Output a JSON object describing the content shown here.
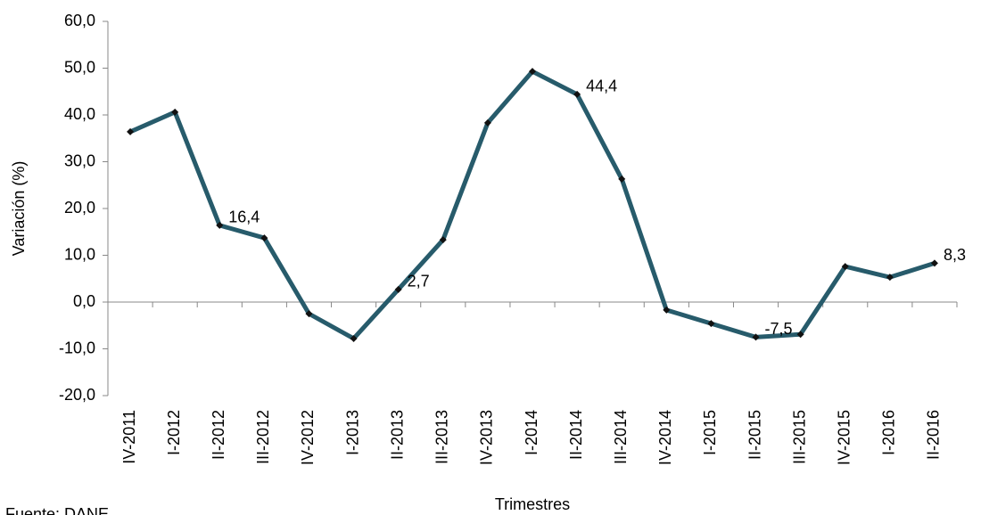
{
  "chart_data": {
    "type": "line",
    "x_label": "Trimestres",
    "y_label": "Variación (%)",
    "source": "Fuente: DANE",
    "categories": [
      "IV-2011",
      "I-2012",
      "II-2012",
      "III-2012",
      "IV-2012",
      "I-2013",
      "II-2013",
      "III-2013",
      "IV-2013",
      "I-2014",
      "II-2014",
      "III-2014",
      "IV-2014",
      "I-2015",
      "II-2015",
      "III-2015",
      "IV-2015",
      "I-2016",
      "II-2016"
    ],
    "series": [
      {
        "name": "Variación",
        "color": "#275b6b",
        "values": [
          36.4,
          40.6,
          16.4,
          13.7,
          -2.5,
          -7.8,
          2.7,
          13.3,
          38.3,
          49.3,
          44.4,
          26.3,
          -1.7,
          -4.6,
          -7.5,
          -6.9,
          7.6,
          5.3,
          8.3
        ],
        "value_labels": [
          null,
          null,
          "16,4",
          null,
          null,
          null,
          "2,7",
          null,
          null,
          null,
          "44,4",
          null,
          null,
          null,
          "-7,5",
          null,
          null,
          null,
          "8,3"
        ]
      }
    ],
    "ylim": [
      -20,
      60
    ],
    "yticks": [
      {
        "value": -20,
        "label": "-20,0"
      },
      {
        "value": -10,
        "label": "-10,0"
      },
      {
        "value": 0,
        "label": "0,0"
      },
      {
        "value": 10,
        "label": "10,0"
      },
      {
        "value": 20,
        "label": "20,0"
      },
      {
        "value": 30,
        "label": "30,0"
      },
      {
        "value": 40,
        "label": "40,0"
      },
      {
        "value": 50,
        "label": "50,0"
      },
      {
        "value": 60,
        "label": "60,0"
      }
    ]
  }
}
